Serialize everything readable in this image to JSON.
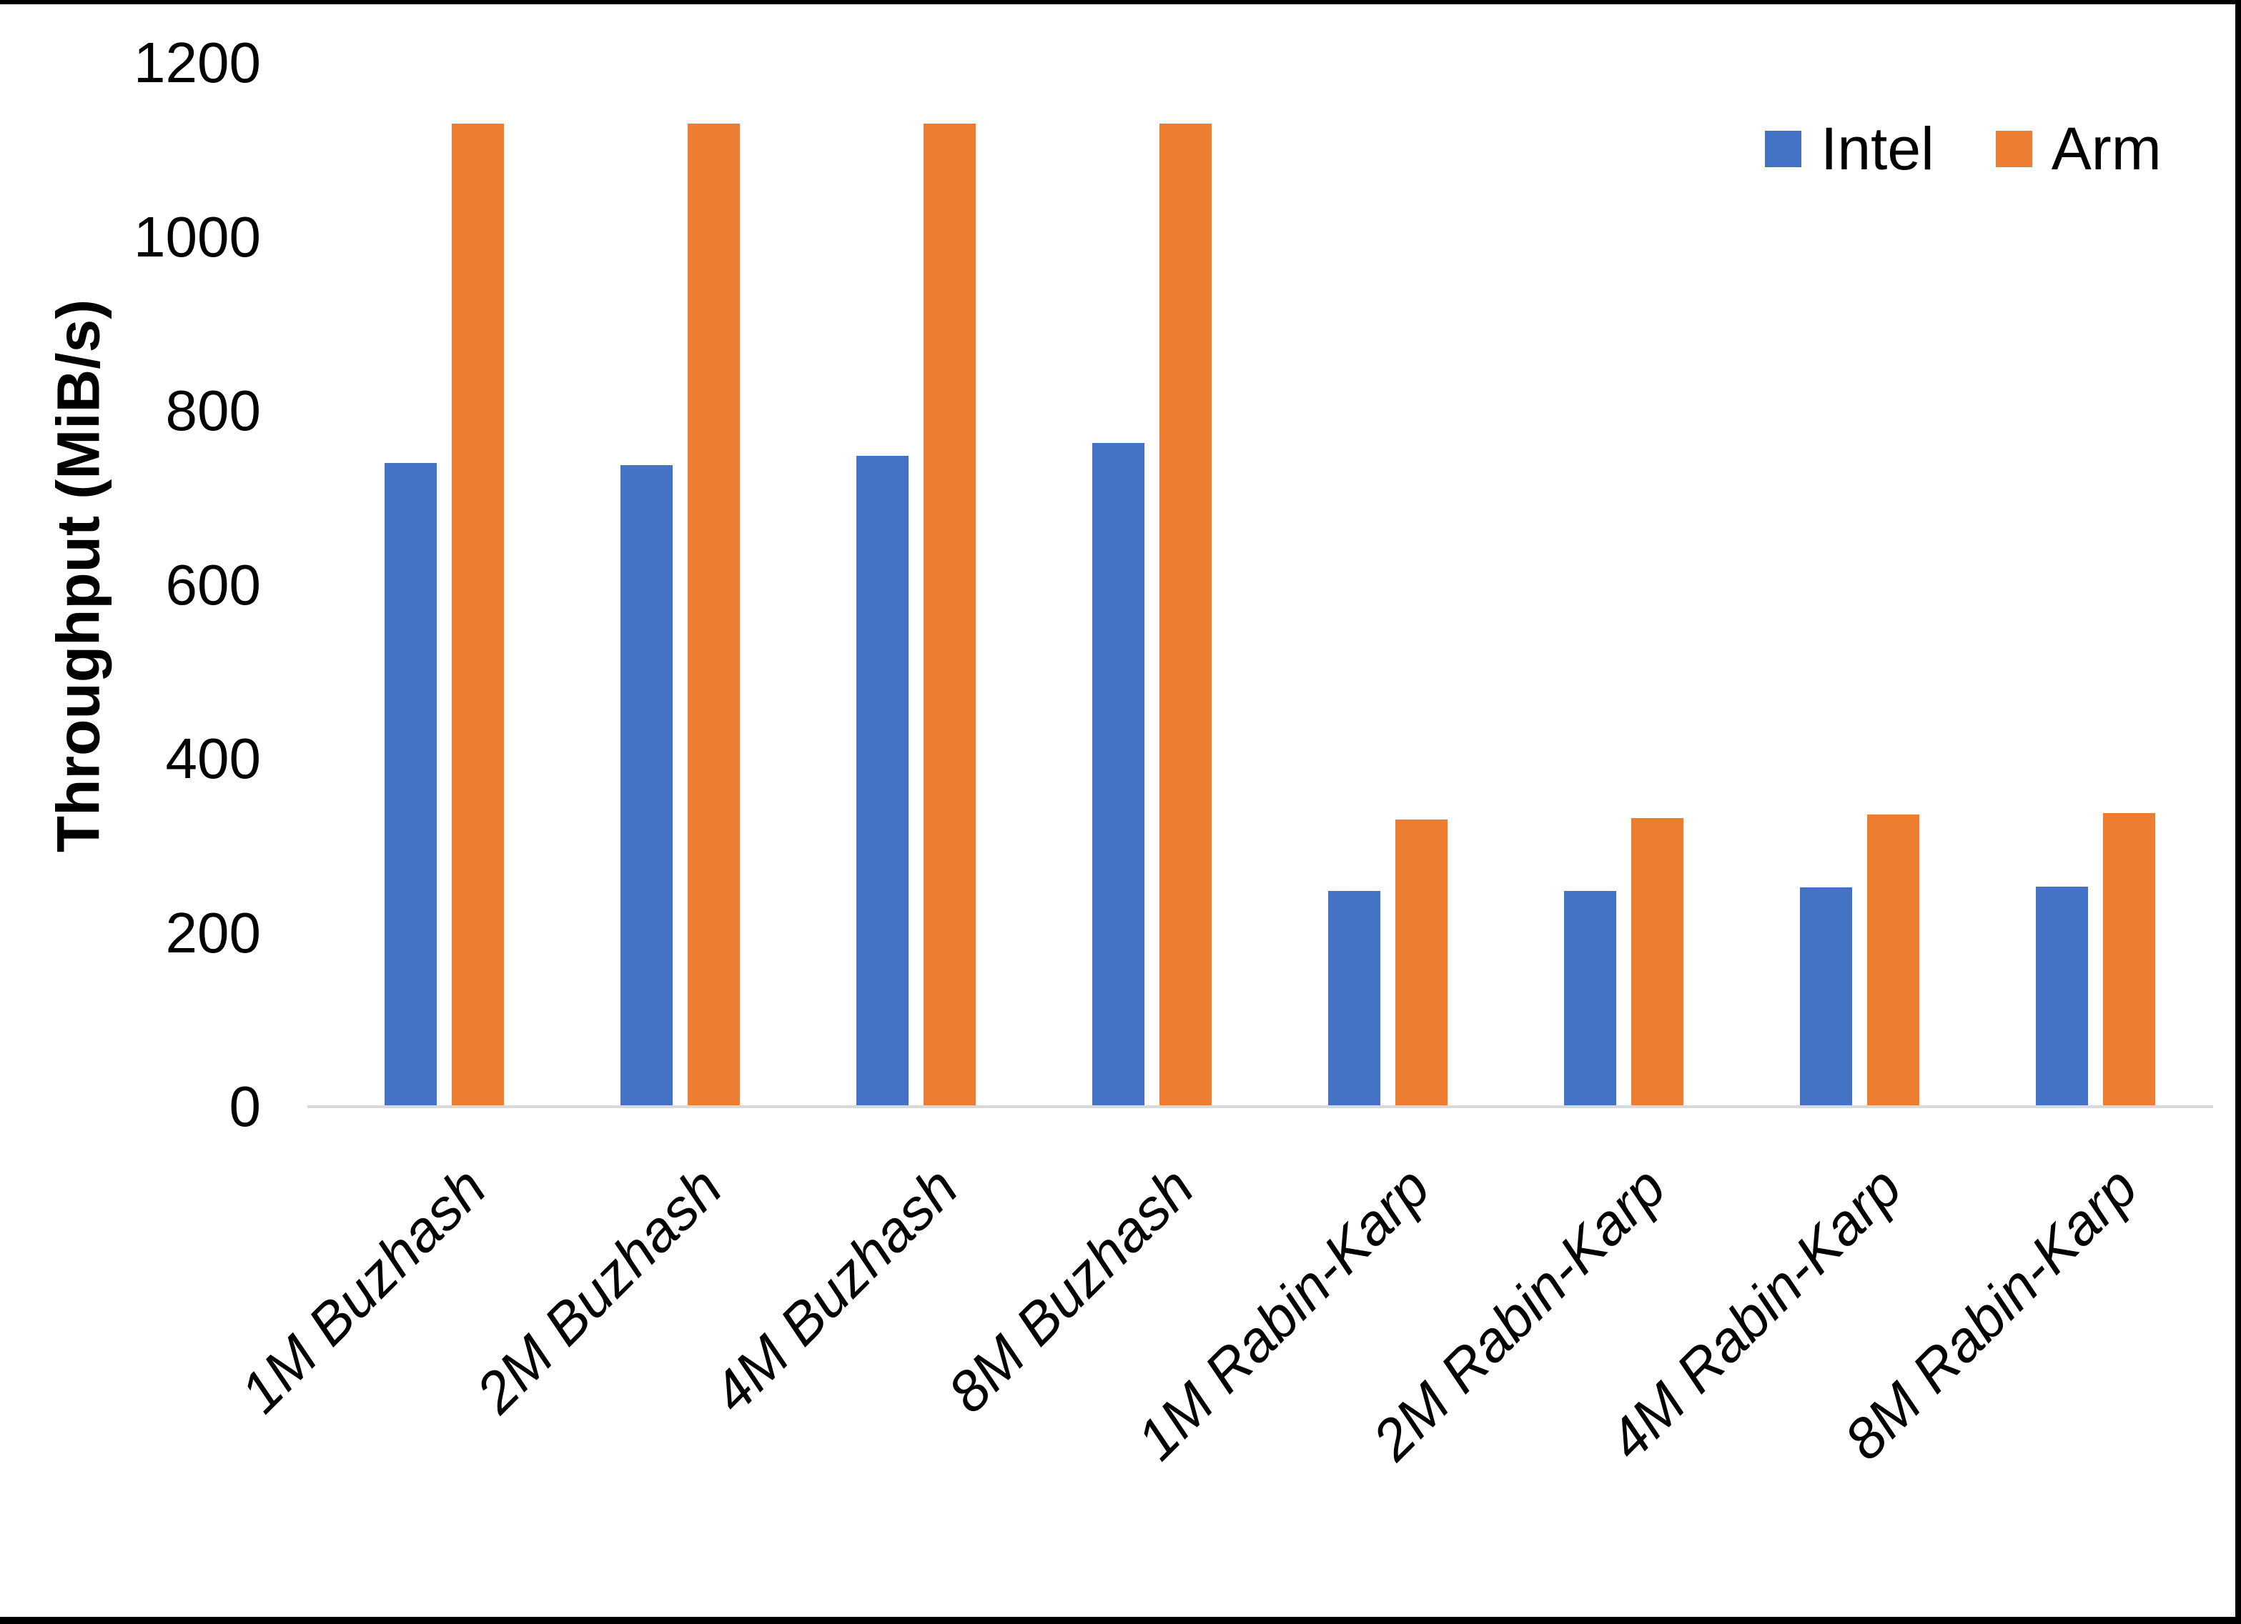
{
  "y_axis": {
    "title": "Throughput (MiB/s)",
    "ticks": [
      0,
      200,
      400,
      600,
      800,
      1000,
      1200
    ],
    "min": 0,
    "max": 1200
  },
  "legend": {
    "position": "top-right",
    "items": [
      {
        "label": "Intel",
        "color": "#4472C4"
      },
      {
        "label": "Arm",
        "color": "#ED7D31"
      }
    ]
  },
  "colors": {
    "intel_blue": "#4472C4",
    "arm_orange": "#ED7D31",
    "axis_line": "#D9D9D9",
    "text": "#000000",
    "frame_border": "#000000"
  },
  "chart_data": {
    "type": "bar",
    "title": "",
    "xlabel": "",
    "ylabel": "Throughput (MiB/s)",
    "ylim": [
      0,
      1200
    ],
    "yticks": [
      0,
      200,
      400,
      600,
      800,
      1000,
      1200
    ],
    "grid": false,
    "legend_position": "top-right",
    "categories": [
      "1M Buzhash",
      "2M Buzhash",
      "4M Buzhash",
      "8M Buzhash",
      "1M Rabin-Karp",
      "2M Rabin-Karp",
      "4M Rabin-Karp",
      "8M Rabin-Karp"
    ],
    "series": [
      {
        "name": "Intel",
        "color": "#4472C4",
        "values": [
          740,
          738,
          748,
          763,
          248,
          248,
          252,
          253
        ]
      },
      {
        "name": "Arm",
        "color": "#ED7D31",
        "values": [
          1130,
          1130,
          1130,
          1130,
          330,
          332,
          336,
          338
        ]
      }
    ]
  }
}
